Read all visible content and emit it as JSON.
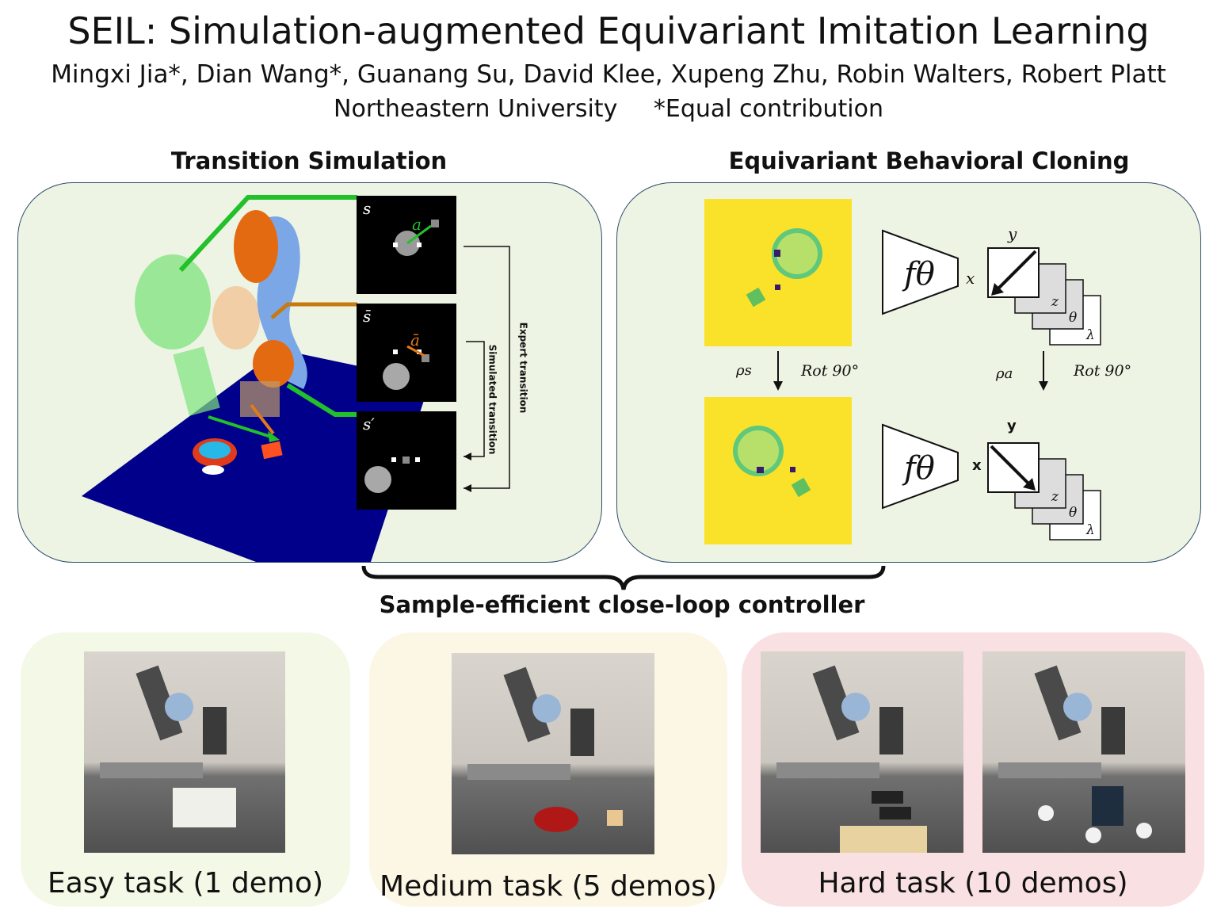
{
  "header": {
    "title": "SEIL: Simulation-augmented Equivariant Imitation Learning",
    "authors": "Mingxi Jia*, Dian Wang*, Guanang Su, David Klee, Xupeng Zhu, Robin Walters, Robert Platt",
    "affiliation": "Northeastern University",
    "note": "*Equal contribution"
  },
  "left_panel": {
    "heading": "Transition Simulation",
    "state_labels": [
      "s",
      "s̄",
      "s′"
    ],
    "action_labels": [
      "a",
      "ā"
    ],
    "expert_transition": "Expert transition",
    "simulated_transition": "Simulated transition"
  },
  "right_panel": {
    "heading": "Equivariant Behavioral Cloning",
    "network_label": "fθ",
    "axis_x": "x",
    "axis_y": "y",
    "channels": [
      "z",
      "θ",
      "λ"
    ],
    "rho_s": "ρs",
    "rho_a": "ρa",
    "rotation": "Rot 90°"
  },
  "bracket_label": "Sample-efficient close-loop controller",
  "tasks": [
    {
      "label": "Easy task (1 demo)",
      "color": "#f3f9e6"
    },
    {
      "label": "Medium task (5 demos)",
      "color": "#fcf6e4"
    },
    {
      "label": "Hard task (10 demos)",
      "color": "#f9e0e2"
    }
  ],
  "colors": {
    "panel_bg": "#eef4e4",
    "panel_border": "#2f4f6f",
    "ground": "#00008a",
    "obs_yellow": "#fbe22a",
    "obs_circle": "#7fd07a",
    "green_line": "#22c02a",
    "orange_line": "#c67a10"
  }
}
